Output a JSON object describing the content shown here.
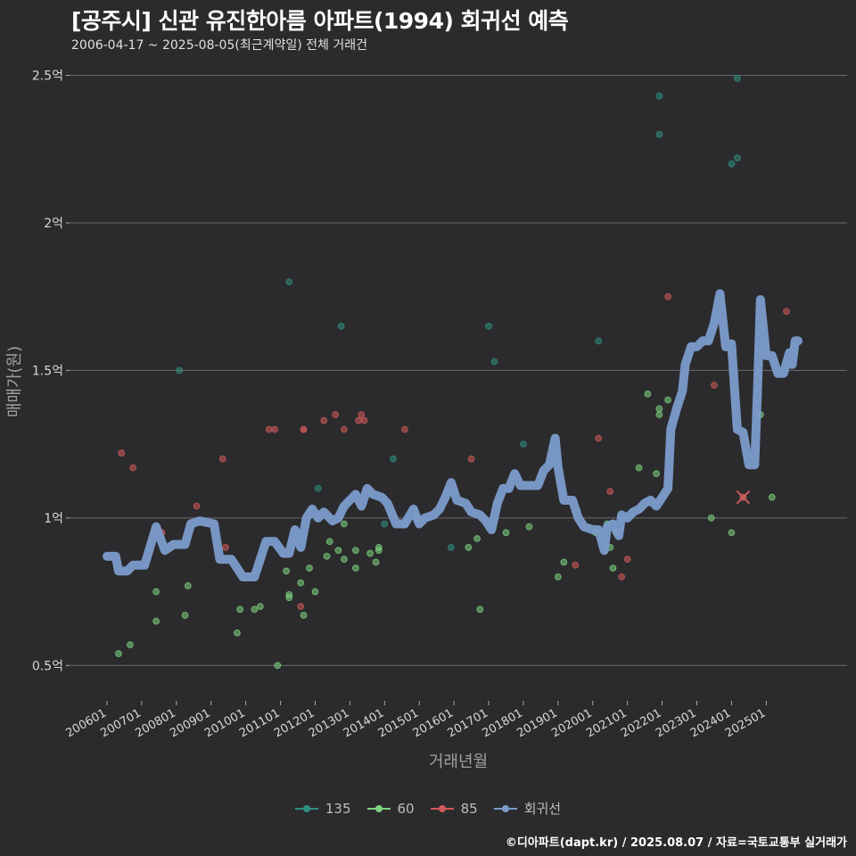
{
  "title": "[공주시] 신관 유진한아름 아파트(1994) 회귀선 예측",
  "subtitle": "2006-04-17 ~ 2025-08-05(최근계약일) 전체 거래건",
  "credit": "©디아파트(dapt.kr) / 2025.08.07 / 자료=국토교통부 실거래가",
  "chart_data": {
    "type": "scatter",
    "xlabel": "거래년월",
    "ylabel": "매매가(원)",
    "x_unit": "month",
    "x_range": [
      "2006-01",
      "2025-12"
    ],
    "ylim": [
      0.38,
      2.55
    ],
    "y_ticks": [
      0.5,
      1,
      1.5,
      2,
      2.5
    ],
    "y_tick_labels": [
      "0.5억",
      "1억",
      "1.5억",
      "2억",
      "2.5억"
    ],
    "x_ticks": [
      "2006-01",
      "2007-01",
      "2008-01",
      "2009-01",
      "2010-01",
      "2011-01",
      "2012-01",
      "2013-01",
      "2014-01",
      "2015-01",
      "2016-01",
      "2017-01",
      "2018-01",
      "2019-01",
      "2020-01",
      "2021-01",
      "2022-01",
      "2023-01",
      "2024-01",
      "2025-01"
    ],
    "x_tick_labels": [
      "200601",
      "200701",
      "200801",
      "200901",
      "201001",
      "201101",
      "201201",
      "201301",
      "201401",
      "201501",
      "201601",
      "201701",
      "201801",
      "201901",
      "202001",
      "202101",
      "202201",
      "202301",
      "202401",
      "202501"
    ],
    "grid": "horizontal",
    "legend_position": "bottom",
    "series": [
      {
        "name": "135",
        "color": "#2f8f7f",
        "points": [
          [
            "2008-02",
            1.5
          ],
          [
            "2011-04",
            1.8
          ],
          [
            "2012-02",
            1.1
          ],
          [
            "2012-10",
            1.65
          ],
          [
            "2014-01",
            0.98
          ],
          [
            "2014-04",
            1.2
          ],
          [
            "2015-12",
            0.9
          ],
          [
            "2017-01",
            1.65
          ],
          [
            "2017-03",
            1.53
          ],
          [
            "2018-01",
            1.25
          ],
          [
            "2020-03",
            1.6
          ],
          [
            "2021-12",
            2.43
          ],
          [
            "2021-12",
            2.3
          ],
          [
            "2024-01",
            2.2
          ],
          [
            "2024-03",
            2.22
          ],
          [
            "2024-03",
            2.49
          ],
          [
            "2024-05",
            1.07
          ]
        ]
      },
      {
        "name": "60",
        "color": "#7ed27e",
        "points": [
          [
            "2006-05",
            0.54
          ],
          [
            "2006-09",
            0.57
          ],
          [
            "2007-06",
            0.75
          ],
          [
            "2007-06",
            0.65
          ],
          [
            "2008-04",
            0.67
          ],
          [
            "2008-05",
            0.77
          ],
          [
            "2009-10",
            0.61
          ],
          [
            "2009-11",
            0.69
          ],
          [
            "2010-04",
            0.69
          ],
          [
            "2010-06",
            0.7
          ],
          [
            "2010-12",
            0.5
          ],
          [
            "2011-03",
            0.82
          ],
          [
            "2011-04",
            0.74
          ],
          [
            "2011-04",
            0.73
          ],
          [
            "2011-08",
            0.78
          ],
          [
            "2011-09",
            0.67
          ],
          [
            "2011-11",
            0.83
          ],
          [
            "2012-01",
            0.75
          ],
          [
            "2012-05",
            0.87
          ],
          [
            "2012-06",
            0.92
          ],
          [
            "2012-09",
            0.89
          ],
          [
            "2012-11",
            0.98
          ],
          [
            "2012-11",
            0.86
          ],
          [
            "2013-03",
            0.83
          ],
          [
            "2013-03",
            0.89
          ],
          [
            "2013-08",
            0.88
          ],
          [
            "2013-10",
            0.85
          ],
          [
            "2013-11",
            0.9
          ],
          [
            "2013-11",
            0.89
          ],
          [
            "2014-08",
            0.98
          ],
          [
            "2014-12",
            1.0
          ],
          [
            "2016-06",
            0.9
          ],
          [
            "2016-09",
            0.93
          ],
          [
            "2016-10",
            0.69
          ],
          [
            "2017-07",
            0.95
          ],
          [
            "2018-03",
            0.97
          ],
          [
            "2019-01",
            0.8
          ],
          [
            "2019-03",
            0.85
          ],
          [
            "2020-02",
            0.95
          ],
          [
            "2020-06",
            0.98
          ],
          [
            "2020-07",
            0.9
          ],
          [
            "2020-08",
            0.83
          ],
          [
            "2020-09",
            0.95
          ],
          [
            "2021-05",
            1.17
          ],
          [
            "2021-08",
            1.42
          ],
          [
            "2021-11",
            1.15
          ],
          [
            "2021-12",
            1.37
          ],
          [
            "2021-12",
            1.35
          ],
          [
            "2022-03",
            1.4
          ],
          [
            "2023-06",
            1.0
          ],
          [
            "2024-01",
            0.95
          ],
          [
            "2024-11",
            1.35
          ],
          [
            "2025-03",
            1.07
          ]
        ]
      },
      {
        "name": "85",
        "color": "#d15a5a",
        "points": [
          [
            "2006-06",
            1.22
          ],
          [
            "2006-10",
            1.17
          ],
          [
            "2007-08",
            0.95
          ],
          [
            "2008-08",
            1.04
          ],
          [
            "2009-05",
            1.2
          ],
          [
            "2009-06",
            0.9
          ],
          [
            "2010-09",
            1.3
          ],
          [
            "2010-11",
            1.3
          ],
          [
            "2011-08",
            0.7
          ],
          [
            "2011-09",
            1.3
          ],
          [
            "2011-09",
            1.3
          ],
          [
            "2012-04",
            1.33
          ],
          [
            "2012-08",
            1.35
          ],
          [
            "2012-11",
            1.3
          ],
          [
            "2013-04",
            1.33
          ],
          [
            "2013-05",
            1.35
          ],
          [
            "2013-06",
            1.33
          ],
          [
            "2014-08",
            1.3
          ],
          [
            "2016-07",
            1.2
          ],
          [
            "2019-07",
            0.84
          ],
          [
            "2020-03",
            1.27
          ],
          [
            "2020-07",
            1.09
          ],
          [
            "2020-11",
            0.8
          ],
          [
            "2021-01",
            0.86
          ],
          [
            "2022-03",
            1.75
          ],
          [
            "2023-07",
            1.45
          ],
          [
            "2024-05",
            1.07
          ],
          [
            "2025-08",
            1.7
          ]
        ]
      },
      {
        "name": "회귀선",
        "color": "#7c9ccc",
        "points": [
          [
            "2006-01",
            0.87
          ],
          [
            "2006-04",
            0.87
          ],
          [
            "2006-05",
            0.82
          ],
          [
            "2006-08",
            0.82
          ],
          [
            "2006-10",
            0.84
          ],
          [
            "2007-02",
            0.84
          ],
          [
            "2007-06",
            0.97
          ],
          [
            "2007-09",
            0.89
          ],
          [
            "2007-12",
            0.91
          ],
          [
            "2008-04",
            0.91
          ],
          [
            "2008-06",
            0.98
          ],
          [
            "2008-09",
            0.99
          ],
          [
            "2009-02",
            0.98
          ],
          [
            "2009-04",
            0.86
          ],
          [
            "2009-08",
            0.86
          ],
          [
            "2009-12",
            0.8
          ],
          [
            "2010-04",
            0.8
          ],
          [
            "2010-06",
            0.86
          ],
          [
            "2010-08",
            0.92
          ],
          [
            "2010-11",
            0.92
          ],
          [
            "2011-02",
            0.88
          ],
          [
            "2011-04",
            0.88
          ],
          [
            "2011-06",
            0.96
          ],
          [
            "2011-08",
            0.9
          ],
          [
            "2011-10",
            1.0
          ],
          [
            "2011-12",
            1.03
          ],
          [
            "2012-02",
            1.0
          ],
          [
            "2012-04",
            1.02
          ],
          [
            "2012-07",
            0.99
          ],
          [
            "2012-09",
            1.0
          ],
          [
            "2012-11",
            1.04
          ],
          [
            "2013-01",
            1.06
          ],
          [
            "2013-03",
            1.08
          ],
          [
            "2013-05",
            1.04
          ],
          [
            "2013-07",
            1.1
          ],
          [
            "2013-09",
            1.08
          ],
          [
            "2013-12",
            1.07
          ],
          [
            "2014-02",
            1.05
          ],
          [
            "2014-05",
            0.98
          ],
          [
            "2014-08",
            0.98
          ],
          [
            "2014-11",
            1.03
          ],
          [
            "2015-01",
            0.98
          ],
          [
            "2015-03",
            1.0
          ],
          [
            "2015-06",
            1.01
          ],
          [
            "2015-08",
            1.03
          ],
          [
            "2015-10",
            1.07
          ],
          [
            "2015-12",
            1.12
          ],
          [
            "2016-02",
            1.06
          ],
          [
            "2016-05",
            1.05
          ],
          [
            "2016-07",
            1.02
          ],
          [
            "2016-10",
            1.01
          ],
          [
            "2016-12",
            0.99
          ],
          [
            "2017-02",
            0.96
          ],
          [
            "2017-04",
            1.05
          ],
          [
            "2017-06",
            1.1
          ],
          [
            "2017-08",
            1.1
          ],
          [
            "2017-10",
            1.15
          ],
          [
            "2017-12",
            1.11
          ],
          [
            "2018-03",
            1.11
          ],
          [
            "2018-06",
            1.11
          ],
          [
            "2018-08",
            1.16
          ],
          [
            "2018-10",
            1.18
          ],
          [
            "2018-12",
            1.27
          ],
          [
            "2019-01",
            1.17
          ],
          [
            "2019-03",
            1.06
          ],
          [
            "2019-06",
            1.06
          ],
          [
            "2019-08",
            1.0
          ],
          [
            "2019-10",
            0.97
          ],
          [
            "2020-01",
            0.96
          ],
          [
            "2020-03",
            0.96
          ],
          [
            "2020-05",
            0.89
          ],
          [
            "2020-06",
            0.97
          ],
          [
            "2020-08",
            0.98
          ],
          [
            "2020-10",
            0.94
          ],
          [
            "2020-11",
            1.01
          ],
          [
            "2021-01",
            1.0
          ],
          [
            "2021-03",
            1.02
          ],
          [
            "2021-05",
            1.03
          ],
          [
            "2021-07",
            1.05
          ],
          [
            "2021-09",
            1.06
          ],
          [
            "2021-11",
            1.04
          ],
          [
            "2022-01",
            1.07
          ],
          [
            "2022-03",
            1.1
          ],
          [
            "2022-04",
            1.3
          ],
          [
            "2022-06",
            1.37
          ],
          [
            "2022-08",
            1.43
          ],
          [
            "2022-09",
            1.52
          ],
          [
            "2022-11",
            1.58
          ],
          [
            "2023-01",
            1.58
          ],
          [
            "2023-03",
            1.6
          ],
          [
            "2023-05",
            1.6
          ],
          [
            "2023-07",
            1.66
          ],
          [
            "2023-09",
            1.76
          ],
          [
            "2023-11",
            1.58
          ],
          [
            "2024-01",
            1.59
          ],
          [
            "2024-03",
            1.3
          ],
          [
            "2024-05",
            1.29
          ],
          [
            "2024-07",
            1.18
          ],
          [
            "2024-09",
            1.18
          ],
          [
            "2024-10",
            1.44
          ],
          [
            "2024-11",
            1.74
          ],
          [
            "2025-01",
            1.55
          ],
          [
            "2025-03",
            1.55
          ],
          [
            "2025-05",
            1.49
          ],
          [
            "2025-07",
            1.49
          ],
          [
            "2025-09",
            1.56
          ],
          [
            "2025-10",
            1.52
          ],
          [
            "2025-11",
            1.6
          ],
          [
            "2025-12",
            1.6
          ]
        ]
      }
    ],
    "marker": {
      "x": "2024-05",
      "y": 1.07,
      "shape": "x",
      "color": "#d15a5a"
    }
  }
}
